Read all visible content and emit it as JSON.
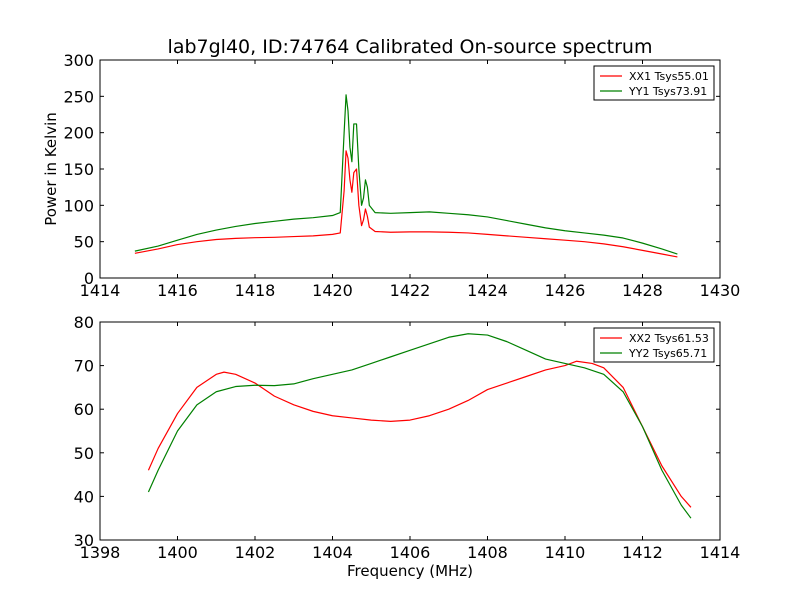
{
  "title": "lab7gl40, ID:74764 Calibrated On-source spectrum",
  "xlabel": "Frequency (MHz)",
  "ylabel": "Power in Kelvin",
  "colors": {
    "red": "#ff0000",
    "green": "#008000"
  },
  "chart_data": [
    {
      "type": "line",
      "xlim": [
        1414,
        1430
      ],
      "ylim": [
        0,
        300
      ],
      "x_ticks": [
        1414,
        1416,
        1418,
        1420,
        1422,
        1424,
        1426,
        1428,
        1430
      ],
      "y_ticks": [
        0,
        50,
        100,
        150,
        200,
        250,
        300
      ],
      "legend_position": "top-right",
      "series": [
        {
          "name": "XX1 Tsys55.01",
          "color": "#ff0000",
          "points": [
            [
              1414.9,
              34
            ],
            [
              1415.5,
              40
            ],
            [
              1416.0,
              46
            ],
            [
              1416.5,
              50
            ],
            [
              1417.0,
              53
            ],
            [
              1417.5,
              54.5
            ],
            [
              1418.0,
              55.5
            ],
            [
              1418.5,
              56
            ],
            [
              1419.0,
              57
            ],
            [
              1419.5,
              58
            ],
            [
              1420.0,
              60
            ],
            [
              1420.2,
              62
            ],
            [
              1420.3,
              120
            ],
            [
              1420.35,
              175
            ],
            [
              1420.4,
              165
            ],
            [
              1420.45,
              135
            ],
            [
              1420.5,
              118
            ],
            [
              1420.55,
              145
            ],
            [
              1420.62,
              150
            ],
            [
              1420.68,
              100
            ],
            [
              1420.75,
              72
            ],
            [
              1420.8,
              80
            ],
            [
              1420.85,
              95
            ],
            [
              1420.9,
              85
            ],
            [
              1420.95,
              70
            ],
            [
              1421.1,
              64
            ],
            [
              1421.5,
              63
            ],
            [
              1422.0,
              63.5
            ],
            [
              1422.5,
              63.5
            ],
            [
              1423.0,
              63
            ],
            [
              1423.5,
              62
            ],
            [
              1424.0,
              60
            ],
            [
              1424.5,
              58
            ],
            [
              1425.0,
              56
            ],
            [
              1425.5,
              54
            ],
            [
              1426.0,
              52
            ],
            [
              1426.5,
              50
            ],
            [
              1427.0,
              47
            ],
            [
              1427.5,
              43
            ],
            [
              1428.0,
              38
            ],
            [
              1428.5,
              33
            ],
            [
              1428.9,
              29
            ]
          ]
        },
        {
          "name": "YY1 Tsys73.91",
          "color": "#008000",
          "points": [
            [
              1414.9,
              37
            ],
            [
              1415.5,
              44
            ],
            [
              1416.0,
              52
            ],
            [
              1416.5,
              60
            ],
            [
              1417.0,
              66
            ],
            [
              1417.5,
              71
            ],
            [
              1418.0,
              75
            ],
            [
              1418.5,
              78
            ],
            [
              1419.0,
              81
            ],
            [
              1419.5,
              83
            ],
            [
              1420.0,
              86
            ],
            [
              1420.2,
              90
            ],
            [
              1420.3,
              200
            ],
            [
              1420.35,
              252
            ],
            [
              1420.4,
              230
            ],
            [
              1420.45,
              180
            ],
            [
              1420.5,
              160
            ],
            [
              1420.55,
              212
            ],
            [
              1420.62,
              212
            ],
            [
              1420.68,
              150
            ],
            [
              1420.75,
              100
            ],
            [
              1420.8,
              110
            ],
            [
              1420.85,
              135
            ],
            [
              1420.9,
              125
            ],
            [
              1420.95,
              100
            ],
            [
              1421.1,
              90
            ],
            [
              1421.5,
              89
            ],
            [
              1422.0,
              90
            ],
            [
              1422.5,
              91
            ],
            [
              1423.0,
              89
            ],
            [
              1423.5,
              87
            ],
            [
              1424.0,
              84
            ],
            [
              1424.5,
              79
            ],
            [
              1425.0,
              74
            ],
            [
              1425.5,
              69
            ],
            [
              1426.0,
              65
            ],
            [
              1426.5,
              62
            ],
            [
              1427.0,
              59
            ],
            [
              1427.5,
              55
            ],
            [
              1428.0,
              48
            ],
            [
              1428.5,
              40
            ],
            [
              1428.9,
              33
            ]
          ]
        }
      ]
    },
    {
      "type": "line",
      "xlim": [
        1398,
        1414
      ],
      "ylim": [
        30,
        80
      ],
      "x_ticks": [
        1398,
        1400,
        1402,
        1404,
        1406,
        1408,
        1410,
        1412,
        1414
      ],
      "y_ticks": [
        30,
        40,
        50,
        60,
        70,
        80
      ],
      "legend_position": "top-right",
      "series": [
        {
          "name": "XX2 Tsys61.53",
          "color": "#ff0000",
          "points": [
            [
              1399.25,
              46
            ],
            [
              1399.5,
              51
            ],
            [
              1400.0,
              59
            ],
            [
              1400.5,
              65
            ],
            [
              1401.0,
              68
            ],
            [
              1401.2,
              68.5
            ],
            [
              1401.5,
              68
            ],
            [
              1402.0,
              66
            ],
            [
              1402.5,
              63
            ],
            [
              1403.0,
              61
            ],
            [
              1403.5,
              59.5
            ],
            [
              1404.0,
              58.5
            ],
            [
              1404.5,
              58
            ],
            [
              1405.0,
              57.5
            ],
            [
              1405.5,
              57.2
            ],
            [
              1406.0,
              57.5
            ],
            [
              1406.5,
              58.5
            ],
            [
              1407.0,
              60
            ],
            [
              1407.5,
              62
            ],
            [
              1408.0,
              64.5
            ],
            [
              1408.5,
              66
            ],
            [
              1409.0,
              67.5
            ],
            [
              1409.5,
              69
            ],
            [
              1410.0,
              70
            ],
            [
              1410.3,
              71
            ],
            [
              1410.7,
              70.5
            ],
            [
              1411.0,
              69.5
            ],
            [
              1411.5,
              65
            ],
            [
              1412.0,
              56
            ],
            [
              1412.5,
              47
            ],
            [
              1413.0,
              40
            ],
            [
              1413.25,
              37.5
            ]
          ]
        },
        {
          "name": "YY2 Tsys65.71",
          "color": "#008000",
          "points": [
            [
              1399.25,
              41
            ],
            [
              1399.5,
              46
            ],
            [
              1400.0,
              55
            ],
            [
              1400.5,
              61
            ],
            [
              1401.0,
              64
            ],
            [
              1401.5,
              65.2
            ],
            [
              1402.0,
              65.5
            ],
            [
              1402.5,
              65.4
            ],
            [
              1403.0,
              65.8
            ],
            [
              1403.5,
              67
            ],
            [
              1404.0,
              68
            ],
            [
              1404.5,
              69
            ],
            [
              1405.0,
              70.5
            ],
            [
              1405.5,
              72
            ],
            [
              1406.0,
              73.5
            ],
            [
              1406.5,
              75
            ],
            [
              1407.0,
              76.5
            ],
            [
              1407.5,
              77.3
            ],
            [
              1408.0,
              77
            ],
            [
              1408.5,
              75.5
            ],
            [
              1409.0,
              73.5
            ],
            [
              1409.5,
              71.5
            ],
            [
              1410.0,
              70.5
            ],
            [
              1410.5,
              69.5
            ],
            [
              1411.0,
              68
            ],
            [
              1411.5,
              64
            ],
            [
              1412.0,
              56
            ],
            [
              1412.5,
              46
            ],
            [
              1413.0,
              38
            ],
            [
              1413.25,
              35
            ]
          ]
        }
      ]
    }
  ]
}
